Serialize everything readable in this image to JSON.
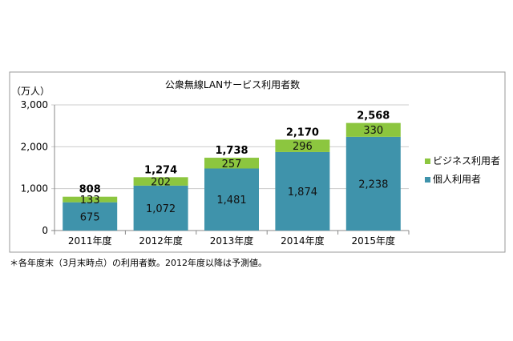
{
  "chart_data": {
    "type": "bar",
    "stacked": true,
    "title": "公衆無線LANサービス利用者数",
    "ylabel": "（万人）",
    "xlabel": "",
    "ylim": [
      0,
      3000
    ],
    "yticks": [
      "0",
      "1,000",
      "2,000",
      "3,000"
    ],
    "ytick_values": [
      0,
      1000,
      2000,
      3000
    ],
    "grid": true,
    "legend_position": "right",
    "categories": [
      "2011年度",
      "2012年度",
      "2013年度",
      "2014年度",
      "2015年度"
    ],
    "series": [
      {
        "name": "個人利用者",
        "color": "#3f93ab",
        "values": [
          675,
          1072,
          1481,
          1874,
          2238
        ],
        "labels": [
          "675",
          "1,072",
          "1,481",
          "1,874",
          "2,238"
        ]
      },
      {
        "name": "ビジネス利用者",
        "color": "#8cc63f",
        "values": [
          133,
          202,
          257,
          296,
          330
        ],
        "labels": [
          "133",
          "202",
          "257",
          "296",
          "330"
        ]
      }
    ],
    "totals": [
      808,
      1274,
      1738,
      2170,
      2568
    ],
    "total_labels": [
      "808",
      "1,274",
      "1,738",
      "2,170",
      "2,568"
    ],
    "legend_order": [
      "ビジネス利用者",
      "個人利用者"
    ]
  },
  "footnote": "＊各年度末（3月末時点）の利用者数。2012年度以降は予測値。"
}
